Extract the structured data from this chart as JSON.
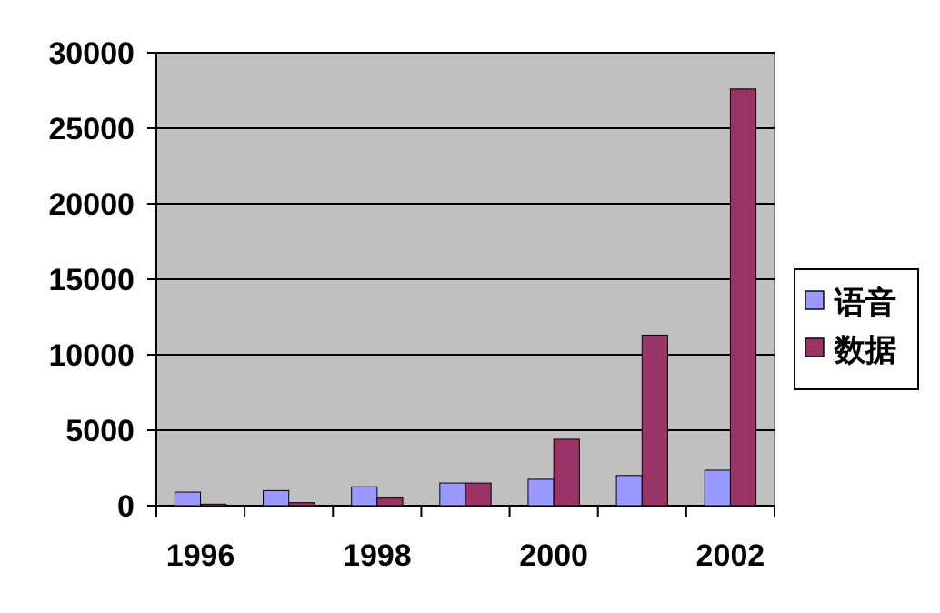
{
  "chart_data": {
    "type": "bar",
    "categories": [
      "1996",
      null,
      "1998",
      null,
      "2000",
      null,
      "2002"
    ],
    "series": [
      {
        "name": "语音",
        "color": "#9999ff",
        "values": [
          900,
          1000,
          1250,
          1500,
          1750,
          2000,
          2350
        ]
      },
      {
        "name": "数据",
        "color": "#993366",
        "values": [
          100,
          200,
          500,
          1500,
          4400,
          11300,
          27600
        ]
      }
    ],
    "ylim": [
      0,
      30000
    ],
    "yticks": [
      0,
      5000,
      10000,
      15000,
      20000,
      25000,
      30000
    ],
    "grid": "y",
    "legend": "right"
  }
}
